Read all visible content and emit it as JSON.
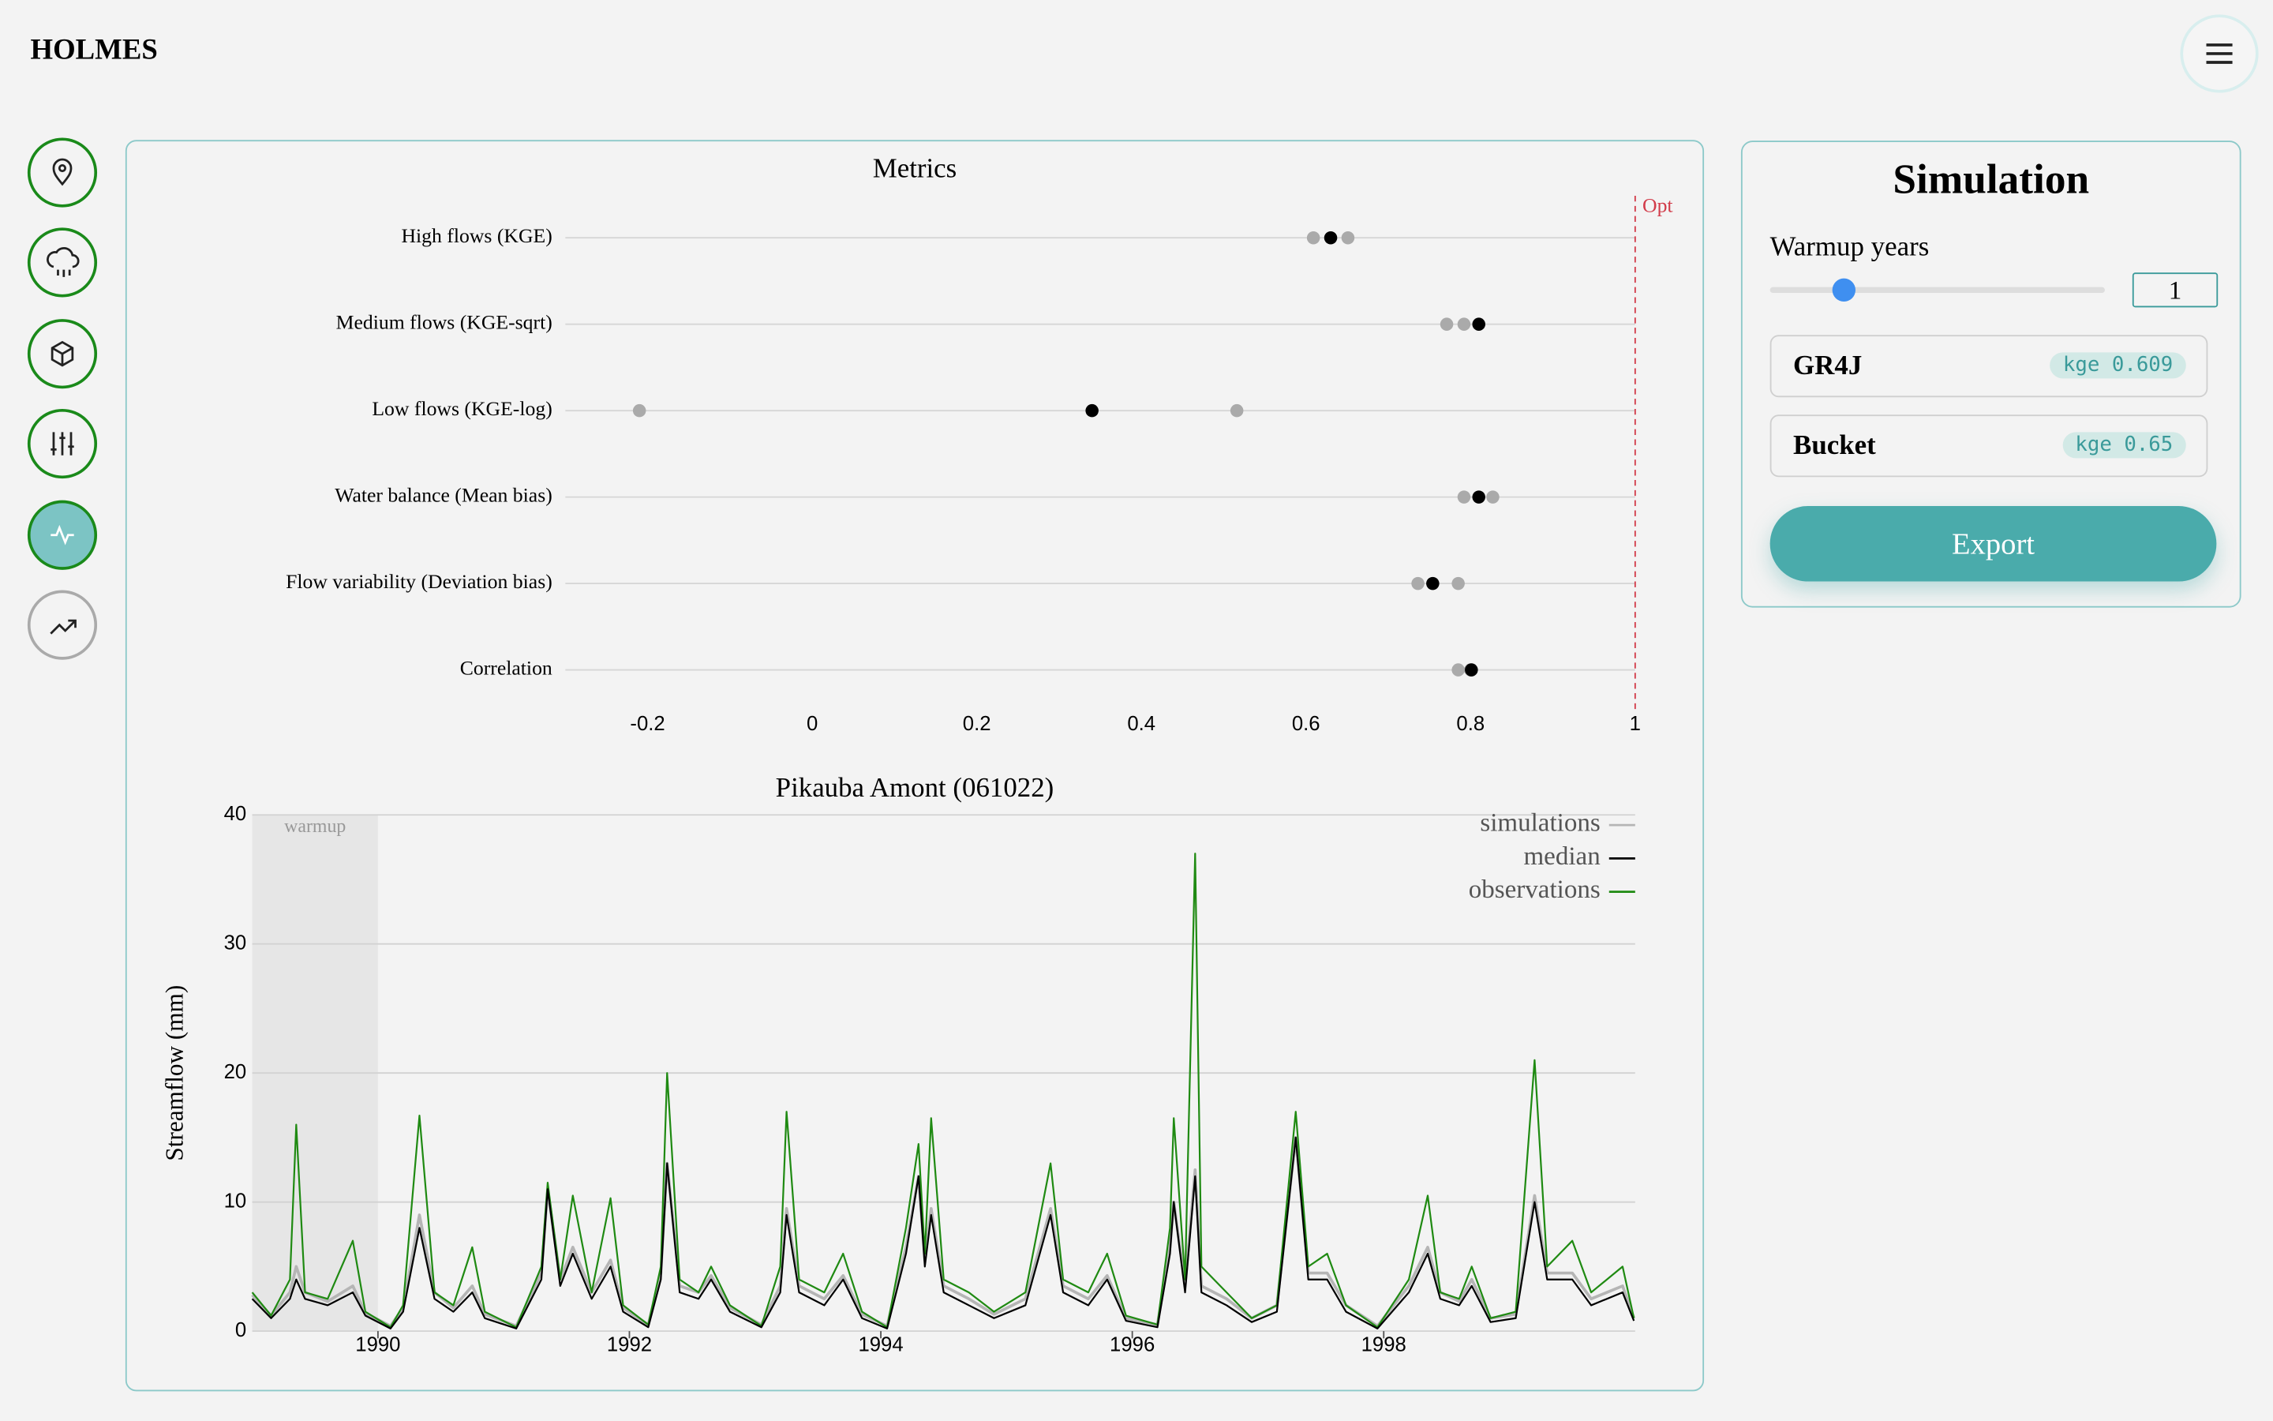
{
  "header": {
    "title": "HOLMES"
  },
  "chart_data": [
    {
      "type": "dot",
      "title": "Metrics",
      "categories": [
        "High flows (KGE)",
        "Medium flows (KGE-sqrt)",
        "Low flows (KGE-log)",
        "Water balance (Mean bias)",
        "Flow variability (Deviation bias)",
        "Correlation"
      ],
      "series": [
        {
          "color": "#aaaaaa",
          "values": [
            0.609,
            0.771,
            -0.21,
            0.792,
            0.736,
            0.785
          ]
        },
        {
          "color": "#aaaaaa",
          "values": [
            0.651,
            0.792,
            0.516,
            0.827,
            0.785,
            0.8
          ]
        },
        {
          "color": "#000000",
          "values": [
            0.63,
            0.81,
            0.34,
            0.81,
            0.754,
            0.801
          ]
        }
      ],
      "xlim": [
        -0.3,
        1
      ],
      "xticks": [
        -0.2,
        0,
        0.2,
        0.4,
        0.6,
        0.8,
        1
      ],
      "reference_line": {
        "value": 1,
        "label": "Opt",
        "color": "#d23c4a"
      }
    },
    {
      "type": "line",
      "title": "Pikauba Amont (061022)",
      "ylabel": "Streamflow (mm)",
      "x": [
        1989.0,
        1989.15,
        1989.3,
        1989.35,
        1989.42,
        1989.6,
        1989.8,
        1989.9,
        1990.1,
        1990.2,
        1990.33,
        1990.45,
        1990.6,
        1990.75,
        1990.85,
        1991.1,
        1991.3,
        1991.35,
        1991.45,
        1991.55,
        1991.7,
        1991.85,
        1991.95,
        1992.15,
        1992.25,
        1992.3,
        1992.4,
        1992.55,
        1992.65,
        1992.8,
        1993.05,
        1993.2,
        1993.25,
        1993.35,
        1993.55,
        1993.7,
        1993.85,
        1994.05,
        1994.2,
        1994.3,
        1994.35,
        1994.4,
        1994.5,
        1994.7,
        1994.9,
        1995.15,
        1995.35,
        1995.45,
        1995.65,
        1995.8,
        1995.95,
        1996.2,
        1996.3,
        1996.33,
        1996.42,
        1996.5,
        1996.55,
        1996.75,
        1996.95,
        1997.15,
        1997.3,
        1997.4,
        1997.55,
        1997.7,
        1997.95,
        1998.2,
        1998.35,
        1998.45,
        1998.6,
        1998.7,
        1998.85,
        1999.05,
        1999.2,
        1999.3,
        1999.5,
        1999.65,
        1999.9,
        1999.99
      ],
      "series": [
        {
          "name": "simulations",
          "color": "#b5b5b5",
          "values": [
            2.8,
            1.2,
            3,
            5,
            3,
            2.3,
            3.5,
            1.4,
            0.4,
            1.8,
            9,
            3,
            1.8,
            3.5,
            1.3,
            0.4,
            4.5,
            11,
            4,
            6.5,
            3,
            5.5,
            1.8,
            0.5,
            4.5,
            13,
            3.5,
            3,
            4.3,
            1.8,
            0.5,
            3.5,
            9.5,
            3.5,
            2.5,
            4.3,
            1.3,
            0.4,
            6.5,
            12,
            5.5,
            9.5,
            3.5,
            2.5,
            1.3,
            2.5,
            9.5,
            3.5,
            2.5,
            4.3,
            1,
            0.5,
            6.5,
            10,
            3.5,
            12.5,
            3.5,
            2.5,
            1,
            2,
            15,
            4.5,
            4.5,
            2,
            0.4,
            3.5,
            6.5,
            3,
            2.3,
            4,
            1,
            1.3,
            10.5,
            4.5,
            4.5,
            2.5,
            3.5,
            1
          ]
        },
        {
          "name": "median",
          "color": "#000000",
          "values": [
            2.5,
            1,
            2.5,
            4,
            2.5,
            2,
            3,
            1.2,
            0.2,
            1.5,
            8,
            2.5,
            1.5,
            3,
            1,
            0.2,
            4,
            11,
            3.5,
            6,
            2.5,
            5,
            1.5,
            0.3,
            4,
            13,
            3,
            2.5,
            4,
            1.5,
            0.3,
            3,
            9,
            3,
            2,
            4,
            1,
            0.2,
            6,
            12,
            5,
            9,
            3,
            2,
            1,
            2,
            9,
            3,
            2,
            4,
            0.8,
            0.3,
            6,
            10,
            3,
            12,
            3,
            2,
            0.7,
            1.5,
            15,
            4,
            4,
            1.5,
            0.2,
            3,
            6,
            2.5,
            2,
            3.5,
            0.7,
            1,
            10,
            4,
            4,
            2,
            3,
            0.8
          ]
        },
        {
          "name": "observations",
          "color": "#1f8a12",
          "values": [
            3,
            1.2,
            4,
            16,
            3,
            2.5,
            7,
            1.5,
            0.3,
            2,
            16.7,
            3,
            2,
            6.5,
            1.5,
            0.3,
            5,
            11.5,
            4,
            10.5,
            3,
            10.3,
            2,
            0.5,
            5,
            20,
            4,
            3,
            5,
            2,
            0.4,
            5,
            17,
            4,
            3,
            6,
            1.5,
            0.3,
            8,
            14.5,
            6,
            16.5,
            4,
            3,
            1.5,
            3,
            13,
            4,
            3,
            6,
            1.2,
            0.5,
            8,
            16.5,
            4,
            37,
            5,
            3,
            1,
            2,
            17,
            5,
            6,
            2,
            0.3,
            4,
            10.5,
            3,
            2.5,
            5,
            1,
            1.5,
            21,
            5,
            7,
            3,
            5,
            1
          ]
        }
      ],
      "xlim": [
        1989,
        2000
      ],
      "ylim": [
        0,
        40
      ],
      "xticks": [
        1990,
        1992,
        1994,
        1996,
        1998
      ],
      "yticks": [
        0,
        10,
        20,
        30,
        40
      ],
      "grid": true,
      "legend": "upper right",
      "shaded_region": {
        "range": [
          1989,
          1990
        ],
        "label": "warmup"
      }
    }
  ],
  "simulation_panel": {
    "title": "Simulation",
    "warmup_label": "Warmup years",
    "warmup_value": "1",
    "models": [
      {
        "name": "GR4J",
        "score": "kge 0.609"
      },
      {
        "name": "Bucket",
        "score": "kge 0.65"
      }
    ],
    "button": "Export"
  }
}
